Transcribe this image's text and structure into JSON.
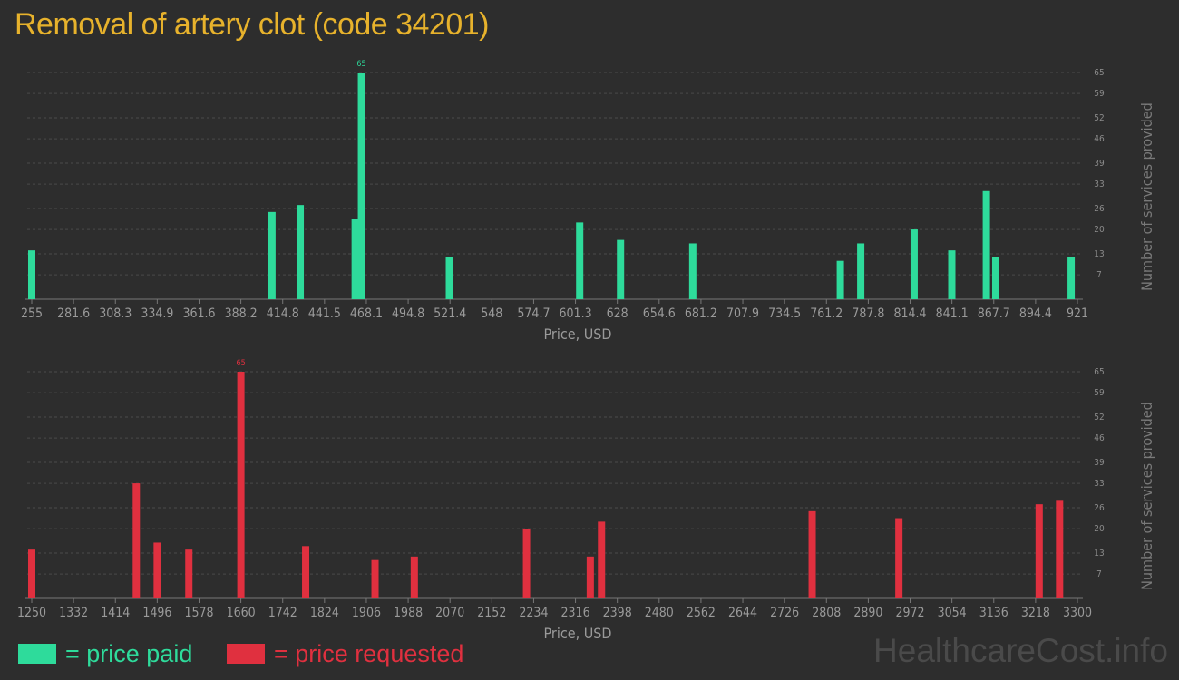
{
  "title": "Removal of artery clot (code 34201)",
  "brand": "HealthcareCost.info",
  "legend": [
    {
      "label": "= price paid",
      "color": "#2edb9b"
    },
    {
      "label": "= price requested",
      "color": "#e0303f"
    }
  ],
  "chart_data": [
    {
      "type": "bar",
      "color": "#2edb9b",
      "xlabel": "Price, USD",
      "ylabel": "Number of services provided",
      "xlim": [
        255,
        921
      ],
      "ylim": [
        0,
        65
      ],
      "x_ticks": [
        "255",
        "281.6",
        "308.3",
        "334.9",
        "361.6",
        "388.2",
        "414.8",
        "441.5",
        "468.1",
        "494.8",
        "521.4",
        "548",
        "574.7",
        "601.3",
        "628",
        "654.6",
        "681.2",
        "707.9",
        "734.5",
        "761.2",
        "787.8",
        "814.4",
        "841.1",
        "867.7",
        "894.4",
        "921"
      ],
      "y_ticks": [
        "7",
        "13",
        "20",
        "26",
        "33",
        "39",
        "46",
        "52",
        "59",
        "65"
      ],
      "max_label": "65",
      "bars": [
        {
          "x": 255,
          "y": 14
        },
        {
          "x": 408,
          "y": 25
        },
        {
          "x": 426,
          "y": 27
        },
        {
          "x": 461,
          "y": 23
        },
        {
          "x": 465,
          "y": 65
        },
        {
          "x": 521,
          "y": 12
        },
        {
          "x": 604,
          "y": 22
        },
        {
          "x": 630,
          "y": 17
        },
        {
          "x": 676,
          "y": 16
        },
        {
          "x": 770,
          "y": 11
        },
        {
          "x": 783,
          "y": 16
        },
        {
          "x": 817,
          "y": 20
        },
        {
          "x": 841,
          "y": 14
        },
        {
          "x": 863,
          "y": 31
        },
        {
          "x": 869,
          "y": 12
        },
        {
          "x": 917,
          "y": 12
        }
      ]
    },
    {
      "type": "bar",
      "color": "#e0303f",
      "xlabel": "Price, USD",
      "ylabel": "Number of services provided",
      "xlim": [
        1250,
        3300
      ],
      "ylim": [
        0,
        65
      ],
      "x_ticks": [
        "1250",
        "1332",
        "1414",
        "1496",
        "1578",
        "1660",
        "1742",
        "1824",
        "1906",
        "1988",
        "2070",
        "2152",
        "2234",
        "2316",
        "2398",
        "2480",
        "2562",
        "2644",
        "2726",
        "2808",
        "2890",
        "2972",
        "3054",
        "3136",
        "3218",
        "3300"
      ],
      "y_ticks": [
        "7",
        "13",
        "20",
        "26",
        "33",
        "39",
        "46",
        "52",
        "59",
        "65"
      ],
      "max_label": "65",
      "bars": [
        {
          "x": 1250,
          "y": 14
        },
        {
          "x": 1455,
          "y": 33
        },
        {
          "x": 1496,
          "y": 16
        },
        {
          "x": 1558,
          "y": 14
        },
        {
          "x": 1660,
          "y": 65
        },
        {
          "x": 1787,
          "y": 15
        },
        {
          "x": 1923,
          "y": 11
        },
        {
          "x": 2000,
          "y": 12
        },
        {
          "x": 2220,
          "y": 20
        },
        {
          "x": 2345,
          "y": 12
        },
        {
          "x": 2367,
          "y": 22
        },
        {
          "x": 2780,
          "y": 25
        },
        {
          "x": 2950,
          "y": 23
        },
        {
          "x": 3225,
          "y": 27
        },
        {
          "x": 3265,
          "y": 28
        }
      ]
    }
  ]
}
